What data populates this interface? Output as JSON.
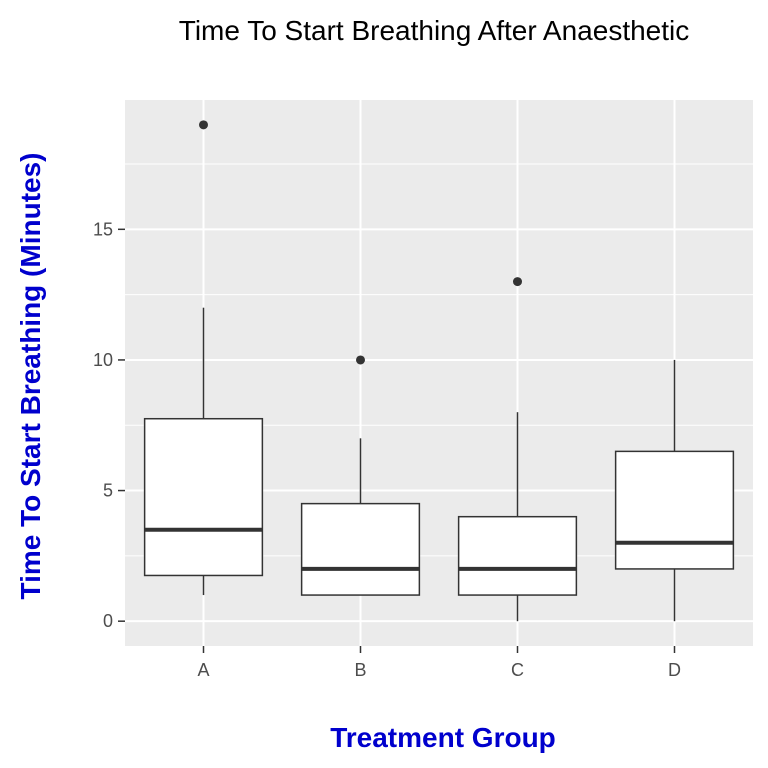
{
  "chart_data": {
    "type": "boxplot",
    "title": "Time To Start Breathing After Anaesthetic",
    "xlabel": "Treatment Group",
    "ylabel": "Time To Start Breathing (Minutes)",
    "categories": [
      "A",
      "B",
      "C",
      "D"
    ],
    "boxes": [
      {
        "category": "A",
        "whisker_low": 1,
        "q1": 1.75,
        "median": 3.5,
        "q3": 7.75,
        "whisker_high": 12,
        "outliers": [
          19
        ]
      },
      {
        "category": "B",
        "whisker_low": 1,
        "q1": 1,
        "median": 2,
        "q3": 4.5,
        "whisker_high": 7,
        "outliers": [
          10
        ]
      },
      {
        "category": "C",
        "whisker_low": 0,
        "q1": 1,
        "median": 2,
        "q3": 4,
        "whisker_high": 8,
        "outliers": [
          13
        ]
      },
      {
        "category": "D",
        "whisker_low": 0,
        "q1": 2,
        "median": 3,
        "q3": 6.5,
        "whisker_high": 10,
        "outliers": []
      }
    ],
    "y_ticks": [
      0,
      5,
      10,
      15
    ],
    "ylim": [
      -0.95,
      19.95
    ],
    "grid": true,
    "colors": {
      "panel_background": "#ebebeb",
      "grid_line": "#ffffff",
      "box_fill": "#ffffff",
      "box_stroke": "#333333",
      "axis_title": "#0000cd",
      "title": "#000000"
    }
  }
}
